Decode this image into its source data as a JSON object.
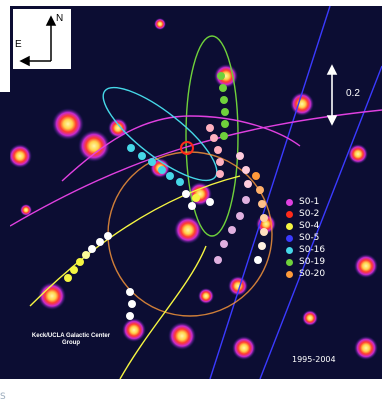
{
  "side_strip_label": "S",
  "compass": {
    "north": "N",
    "east": "E"
  },
  "scale_bar": {
    "label": "0.2"
  },
  "legend": [
    {
      "label": "S0-1",
      "color": "#e040e0"
    },
    {
      "label": "S0-2",
      "color": "#ff2a1a"
    },
    {
      "label": "S0-4",
      "color": "#f5f542"
    },
    {
      "label": "S0-5",
      "color": "#3a3aff"
    },
    {
      "label": "S0-16",
      "color": "#46d8e8"
    },
    {
      "label": "S0-19",
      "color": "#6fd13b"
    },
    {
      "label": "S0-20",
      "color": "#ff9a3a"
    }
  ],
  "credit": "Keck/UCLA Galactic Center Group",
  "years": "1995-2004",
  "colors": {
    "background": "#0c0d33",
    "hot": "#ffee66",
    "warm": "#ff3b2f",
    "glow": "#c82bd0"
  }
}
